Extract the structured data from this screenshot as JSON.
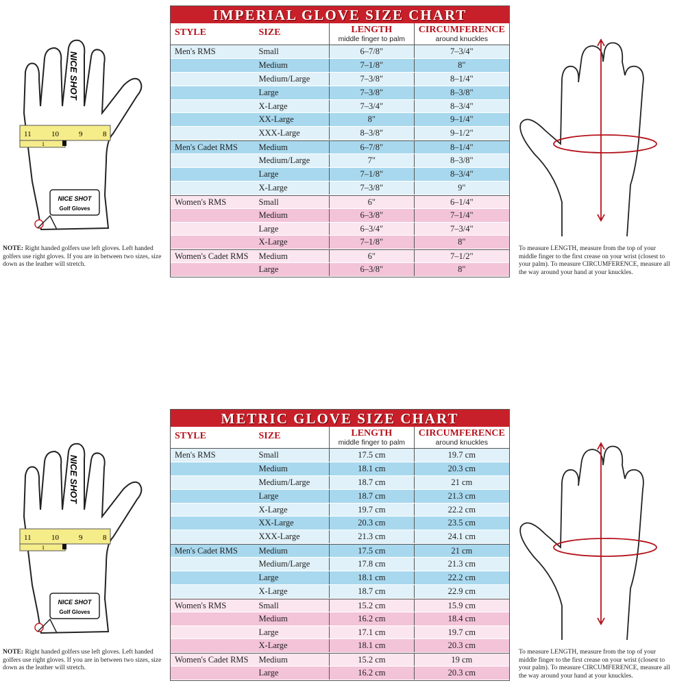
{
  "colors": {
    "title_bg": "#c8202a",
    "header_text": "#b5121b",
    "men_light": "#e0f1f9",
    "men_dark": "#a8d8ee",
    "women_light": "#fbe6ef",
    "women_dark": "#f3c3d7"
  },
  "headers": {
    "style": "STYLE",
    "size": "SIZE",
    "length": "LENGTH",
    "length_sub": "middle finger to palm",
    "circ": "CIRCUMFERENCE",
    "circ_sub": "around knuckles"
  },
  "note": {
    "label": "NOTE:",
    "text": "Right handed golfers use left gloves. Left handed golfers use right gloves. If you are in between two sizes, size down as the leather will stretch."
  },
  "measure_text": "To measure LENGTH, measure from the top of your middle finger to the first crease on your wrist (closest to your palm). To measure CIRCUMFERENCE, measure all the way around your hand at your knuckles.",
  "glove": {
    "brand": "NICE SHOT",
    "logo_sub": "Golf Gloves",
    "ruler": [
      "11",
      "10",
      "9",
      "8",
      "1"
    ]
  },
  "charts": [
    {
      "title": "IMPERIAL GLOVE SIZE CHART",
      "rows": [
        [
          "Men's RMS",
          "Small",
          "6–7/8\"",
          "7–3/4\""
        ],
        [
          "",
          "Medium",
          "7–1/8\"",
          "8\""
        ],
        [
          "",
          "Medium/Large",
          "7–3/8\"",
          "8–1/4\""
        ],
        [
          "",
          "Large",
          "7–3/8\"",
          "8–3/8\""
        ],
        [
          "",
          "X-Large",
          "7–3/4\"",
          "8–3/4\""
        ],
        [
          "",
          "XX-Large",
          "8\"",
          "9–1/4\""
        ],
        [
          "",
          "XXX-Large",
          "8–3/8\"",
          "9–1/2\""
        ],
        [
          "Men's Cadet RMS",
          "Medium",
          "6–7/8\"",
          "8–1/4\""
        ],
        [
          "",
          "Medium/Large",
          "7\"",
          "8–3/8\""
        ],
        [
          "",
          "Large",
          "7–1/8\"",
          "8–3/4\""
        ],
        [
          "",
          "X-Large",
          "7–3/8\"",
          "9\""
        ],
        [
          "Women's RMS",
          "Small",
          "6\"",
          "6–1/4\""
        ],
        [
          "",
          "Medium",
          "6–3/8\"",
          "7–1/4\""
        ],
        [
          "",
          "Large",
          "6–3/4\"",
          "7–3/4\""
        ],
        [
          "",
          "X-Large",
          "7–1/8\"",
          "8\""
        ],
        [
          "Women's Cadet RMS",
          "Medium",
          "6\"",
          "7–1/2\""
        ],
        [
          "",
          "Large",
          "6–3/8\"",
          "8\""
        ]
      ]
    },
    {
      "title": "METRIC GLOVE SIZE CHART",
      "rows": [
        [
          "Men's RMS",
          "Small",
          "17.5 cm",
          "19.7 cm"
        ],
        [
          "",
          "Medium",
          "18.1 cm",
          "20.3 cm"
        ],
        [
          "",
          "Medium/Large",
          "18.7 cm",
          "21 cm"
        ],
        [
          "",
          "Large",
          "18.7 cm",
          "21.3 cm"
        ],
        [
          "",
          "X-Large",
          "19.7 cm",
          "22.2 cm"
        ],
        [
          "",
          "XX-Large",
          "20.3 cm",
          "23.5 cm"
        ],
        [
          "",
          "XXX-Large",
          "21.3 cm",
          "24.1 cm"
        ],
        [
          "Men's Cadet RMS",
          "Medium",
          "17.5 cm",
          "21 cm"
        ],
        [
          "",
          "Medium/Large",
          "17.8 cm",
          "21.3 cm"
        ],
        [
          "",
          "Large",
          "18.1 cm",
          "22.2 cm"
        ],
        [
          "",
          "X-Large",
          "18.7 cm",
          "22.9 cm"
        ],
        [
          "Women's RMS",
          "Small",
          "15.2 cm",
          "15.9 cm"
        ],
        [
          "",
          "Medium",
          "16.2 cm",
          "18.4 cm"
        ],
        [
          "",
          "Large",
          "17.1 cm",
          "19.7 cm"
        ],
        [
          "",
          "X-Large",
          "18.1 cm",
          "20.3 cm"
        ],
        [
          "Women's Cadet RMS",
          "Medium",
          "15.2 cm",
          "19 cm"
        ],
        [
          "",
          "Large",
          "16.2 cm",
          "20.3 cm"
        ]
      ]
    }
  ]
}
